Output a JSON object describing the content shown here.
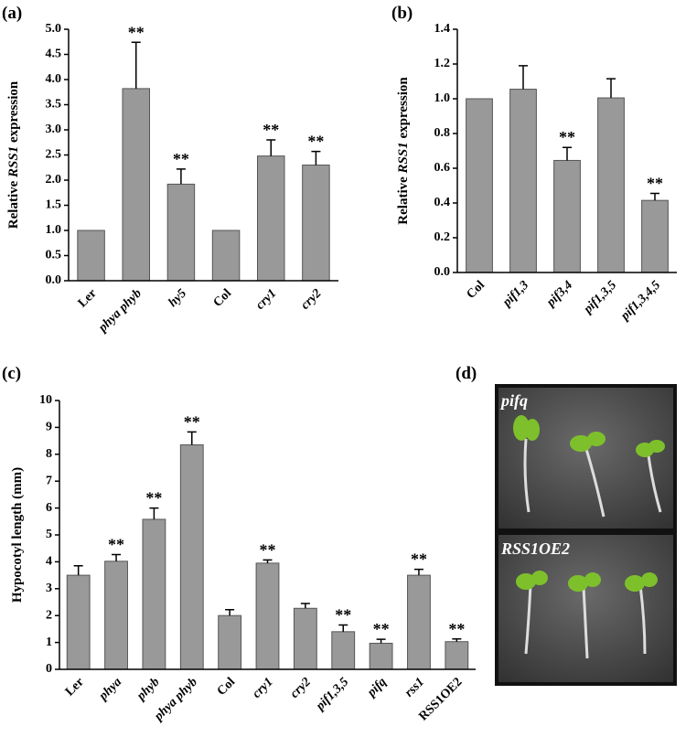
{
  "chart_data": [
    {
      "type": "bar",
      "panel": "(a)",
      "ylabel": [
        "Relative ",
        "RSS1",
        " expression"
      ],
      "categories": [
        "Ler",
        "phya phyb",
        "hy5",
        "Col",
        "cry1",
        "cry2"
      ],
      "category_italic": [
        false,
        true,
        true,
        false,
        true,
        true
      ],
      "values": [
        1.0,
        3.82,
        1.92,
        1.0,
        2.48,
        2.3
      ],
      "errors": [
        0,
        0.92,
        0.3,
        0,
        0.32,
        0.27
      ],
      "significance": [
        null,
        "**",
        "**",
        null,
        "**",
        "**"
      ],
      "color": "#999999",
      "ylim": [
        0,
        5
      ],
      "yticks": [
        {
          "value": 0,
          "label": "0.0"
        },
        0.5,
        {
          "value": 1,
          "label": "1.0"
        },
        1.5,
        {
          "value": 2,
          "label": "2.0"
        },
        2.5,
        {
          "value": 3,
          "label": "3.0"
        },
        3.5,
        {
          "value": 4,
          "label": "4.0"
        },
        4.5,
        {
          "value": 5,
          "label": "5.0"
        }
      ]
    },
    {
      "type": "bar",
      "panel": "(b)",
      "ylabel": [
        "Relative ",
        "RSS1",
        " expression"
      ],
      "categories": [
        "Col",
        "pif1,3",
        "pif3,4",
        "pif1,3,5",
        "pif1,3,4,5"
      ],
      "category_italic": [
        false,
        true,
        true,
        true,
        true
      ],
      "values": [
        1.0,
        1.055,
        0.645,
        1.005,
        0.415
      ],
      "errors": [
        0,
        0.135,
        0.075,
        0.11,
        0.04
      ],
      "significance": [
        null,
        null,
        "**",
        null,
        "**"
      ],
      "color": "#999999",
      "ylim": [
        0,
        1.4
      ],
      "yticks": [
        {
          "value": 0,
          "label": "0.0"
        },
        0.2,
        0.4,
        0.6,
        0.8,
        {
          "value": 1,
          "label": "1.0"
        },
        1.2,
        1.4
      ]
    },
    {
      "type": "bar",
      "panel": "(c)",
      "ylabel": [
        "Hypocotyl length (mm)"
      ],
      "categories": [
        "Ler",
        "phya",
        "phyb",
        "phya phyb",
        "Col",
        "cry1",
        "cry2",
        "pif1,3,5",
        "pifq",
        "rss1",
        "RSS1OE2"
      ],
      "category_italic": [
        false,
        true,
        true,
        true,
        false,
        true,
        true,
        true,
        true,
        true,
        false
      ],
      "values": [
        3.5,
        4.02,
        5.58,
        8.35,
        2.0,
        3.95,
        2.27,
        1.4,
        0.97,
        3.5,
        1.03
      ],
      "errors": [
        0.35,
        0.25,
        0.42,
        0.48,
        0.22,
        0.12,
        0.18,
        0.25,
        0.15,
        0.22,
        0.1
      ],
      "significance": [
        null,
        "**",
        "**",
        "**",
        null,
        "**",
        null,
        "**",
        "**",
        "**",
        "**"
      ],
      "color": "#999999",
      "ylim": [
        0,
        10
      ],
      "yticks": [
        0,
        1,
        2,
        3,
        4,
        5,
        6,
        7,
        8,
        9,
        10
      ]
    }
  ],
  "photo": {
    "panel": "(d)",
    "images": [
      "pifq",
      "RSS1OE2"
    ]
  }
}
